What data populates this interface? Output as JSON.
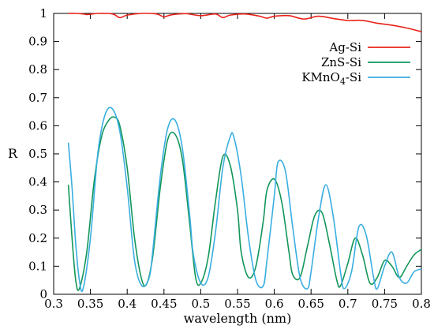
{
  "chart_data": {
    "type": "line",
    "title": "",
    "xlabel": "wavelength (nm)",
    "ylabel": "R",
    "xlim": [
      0.3,
      0.8
    ],
    "ylim": [
      0,
      1
    ],
    "xticks": [
      "0.3",
      "0.35",
      "0.4",
      "0.45",
      "0.5",
      "0.55",
      "0.6",
      "0.65",
      "0.7",
      "0.75",
      "0.8"
    ],
    "yticks": [
      "0",
      "0.1",
      "0.2",
      "0.3",
      "0.4",
      "0.5",
      "0.6",
      "0.7",
      "0.8",
      "0.9",
      "1"
    ],
    "grid": false,
    "legend_position": "top-right",
    "series": [
      {
        "name": "Ag-Si",
        "name_sub": "",
        "name_suffix": "",
        "color": "#e8231a",
        "x": [
          0.32,
          0.33,
          0.34,
          0.345,
          0.35,
          0.36,
          0.38,
          0.39,
          0.4,
          0.42,
          0.44,
          0.45,
          0.46,
          0.48,
          0.5,
          0.52,
          0.53,
          0.54,
          0.56,
          0.58,
          0.59,
          0.6,
          0.62,
          0.64,
          0.66,
          0.68,
          0.7,
          0.72,
          0.74,
          0.76,
          0.78,
          0.8
        ],
        "y": [
          1.0,
          1.0,
          0.998,
          0.996,
          0.997,
          1.0,
          0.998,
          0.985,
          0.994,
          1.0,
          0.998,
          0.988,
          0.995,
          0.999,
          0.992,
          0.998,
          0.985,
          0.994,
          0.998,
          0.99,
          0.983,
          0.99,
          0.992,
          0.98,
          0.99,
          0.982,
          0.975,
          0.975,
          0.965,
          0.958,
          0.948,
          0.935
        ]
      },
      {
        "name": "ZnS-Si",
        "name_sub": "",
        "name_suffix": "",
        "color": "#12965a",
        "x": [
          0.32,
          0.325,
          0.33,
          0.335,
          0.345,
          0.355,
          0.365,
          0.375,
          0.383,
          0.39,
          0.4,
          0.41,
          0.42,
          0.427,
          0.435,
          0.445,
          0.455,
          0.465,
          0.475,
          0.485,
          0.493,
          0.5,
          0.51,
          0.52,
          0.53,
          0.54,
          0.55,
          0.555,
          0.565,
          0.575,
          0.585,
          0.59,
          0.6,
          0.61,
          0.62,
          0.625,
          0.635,
          0.645,
          0.655,
          0.665,
          0.675,
          0.685,
          0.69,
          0.7,
          0.71,
          0.72,
          0.73,
          0.74,
          0.75,
          0.76,
          0.77,
          0.78,
          0.79,
          0.8
        ],
        "y": [
          0.39,
          0.2,
          0.05,
          0.02,
          0.15,
          0.4,
          0.56,
          0.62,
          0.63,
          0.6,
          0.45,
          0.2,
          0.05,
          0.04,
          0.14,
          0.38,
          0.55,
          0.57,
          0.48,
          0.25,
          0.06,
          0.04,
          0.13,
          0.33,
          0.49,
          0.46,
          0.3,
          0.15,
          0.06,
          0.1,
          0.26,
          0.37,
          0.41,
          0.33,
          0.15,
          0.07,
          0.06,
          0.17,
          0.28,
          0.29,
          0.18,
          0.05,
          0.03,
          0.11,
          0.2,
          0.14,
          0.04,
          0.06,
          0.12,
          0.1,
          0.06,
          0.1,
          0.14,
          0.16
        ]
      },
      {
        "name": "KMnO",
        "name_sub": "4",
        "name_suffix": "-Si",
        "color": "#3aaee0",
        "x": [
          0.32,
          0.325,
          0.33,
          0.335,
          0.34,
          0.35,
          0.36,
          0.37,
          0.38,
          0.39,
          0.4,
          0.41,
          0.42,
          0.43,
          0.435,
          0.445,
          0.455,
          0.465,
          0.475,
          0.485,
          0.49,
          0.5,
          0.51,
          0.52,
          0.53,
          0.54,
          0.545,
          0.555,
          0.565,
          0.575,
          0.585,
          0.59,
          0.6,
          0.605,
          0.615,
          0.625,
          0.635,
          0.645,
          0.65,
          0.66,
          0.67,
          0.68,
          0.69,
          0.695,
          0.705,
          0.715,
          0.725,
          0.735,
          0.74,
          0.75,
          0.76,
          0.77,
          0.78,
          0.79,
          0.8
        ],
        "y": [
          0.54,
          0.38,
          0.18,
          0.05,
          0.02,
          0.2,
          0.5,
          0.64,
          0.66,
          0.58,
          0.38,
          0.12,
          0.03,
          0.06,
          0.16,
          0.42,
          0.59,
          0.62,
          0.52,
          0.28,
          0.14,
          0.04,
          0.06,
          0.22,
          0.45,
          0.56,
          0.56,
          0.42,
          0.2,
          0.05,
          0.03,
          0.12,
          0.35,
          0.47,
          0.44,
          0.24,
          0.06,
          0.02,
          0.08,
          0.27,
          0.39,
          0.28,
          0.08,
          0.02,
          0.08,
          0.24,
          0.21,
          0.06,
          0.02,
          0.1,
          0.15,
          0.06,
          0.04,
          0.08,
          0.09
        ]
      }
    ]
  }
}
